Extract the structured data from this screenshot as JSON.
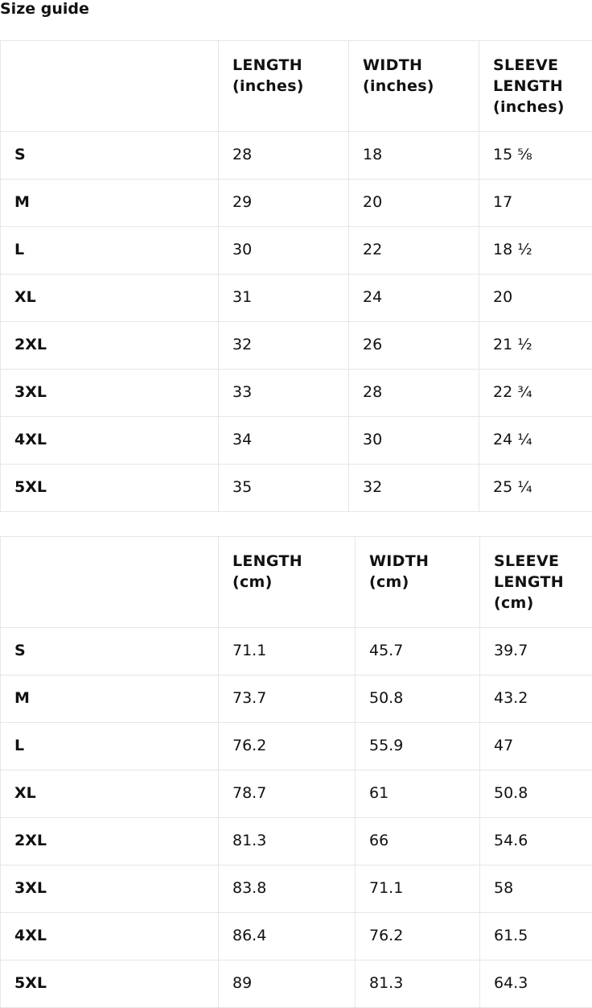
{
  "title": "Size guide",
  "tables": [
    {
      "headers": [
        "",
        "LENGTH (inches)",
        "WIDTH (inches)",
        "SLEEVE LENGTH (inches)"
      ],
      "rows": [
        [
          "S",
          "28",
          "18",
          "15 ⅝"
        ],
        [
          "M",
          "29",
          "20",
          "17"
        ],
        [
          "L",
          "30",
          "22",
          "18 ½"
        ],
        [
          "XL",
          "31",
          "24",
          "20"
        ],
        [
          "2XL",
          "32",
          "26",
          "21 ½"
        ],
        [
          "3XL",
          "33",
          "28",
          "22 ¾"
        ],
        [
          "4XL",
          "34",
          "30",
          "24 ¼"
        ],
        [
          "5XL",
          "35",
          "32",
          "25 ¼"
        ]
      ]
    },
    {
      "headers": [
        "",
        "LENGTH (cm)",
        "WIDTH (cm)",
        "SLEEVE LENGTH (cm)"
      ],
      "rows": [
        [
          "S",
          "71.1",
          "45.7",
          "39.7"
        ],
        [
          "M",
          "73.7",
          "50.8",
          "43.2"
        ],
        [
          "L",
          "76.2",
          "55.9",
          "47"
        ],
        [
          "XL",
          "78.7",
          "61",
          "50.8"
        ],
        [
          "2XL",
          "81.3",
          "66",
          "54.6"
        ],
        [
          "3XL",
          "83.8",
          "71.1",
          "58"
        ],
        [
          "4XL",
          "86.4",
          "76.2",
          "61.5"
        ],
        [
          "5XL",
          "89",
          "81.3",
          "64.3"
        ]
      ]
    }
  ]
}
